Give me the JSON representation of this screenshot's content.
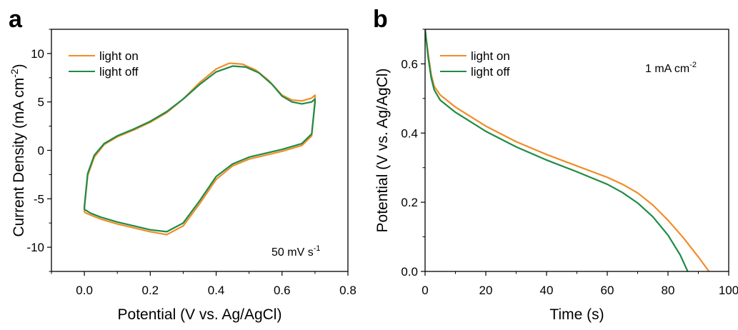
{
  "chart_data": [
    {
      "panel": "a",
      "type": "line",
      "xlabel": "Potential (V vs. Ag/AgCl)",
      "ylabel": "Current Density (mA cm-2)",
      "ylabel_main": "Current Density (mA cm",
      "ylabel_sup": "-2",
      "ylabel_close": ")",
      "xlim": [
        -0.1,
        0.8
      ],
      "ylim": [
        -12.5,
        12.5
      ],
      "xticks": [
        "0.0",
        "0.2",
        "0.4",
        "0.6",
        "0.8"
      ],
      "xtick_values": [
        0.0,
        0.2,
        0.4,
        0.6,
        0.8
      ],
      "yticks": [
        "-10",
        "-5",
        "0",
        "5",
        "10"
      ],
      "ytick_values": [
        -10,
        -5,
        0,
        5,
        10
      ],
      "annotation": "50 mV s-1",
      "annotation_main": "50 mV s",
      "annotation_sup": "-1",
      "legend_position": "top-left",
      "series": [
        {
          "name": "light on",
          "color": "#F28C28",
          "points": [
            [
              0.0,
              -6.4
            ],
            [
              0.0,
              -6.0
            ],
            [
              0.01,
              -2.6
            ],
            [
              0.03,
              -0.7
            ],
            [
              0.06,
              0.6
            ],
            [
              0.1,
              1.4
            ],
            [
              0.15,
              2.1
            ],
            [
              0.2,
              2.9
            ],
            [
              0.25,
              3.9
            ],
            [
              0.3,
              5.3
            ],
            [
              0.35,
              7.0
            ],
            [
              0.4,
              8.4
            ],
            [
              0.44,
              9.0
            ],
            [
              0.48,
              8.9
            ],
            [
              0.52,
              8.3
            ],
            [
              0.56,
              7.2
            ],
            [
              0.6,
              5.7
            ],
            [
              0.63,
              5.2
            ],
            [
              0.66,
              5.1
            ],
            [
              0.69,
              5.4
            ],
            [
              0.7,
              5.7
            ],
            [
              0.7,
              5.2
            ],
            [
              0.69,
              1.5
            ],
            [
              0.66,
              0.5
            ],
            [
              0.6,
              -0.1
            ],
            [
              0.5,
              -0.9
            ],
            [
              0.45,
              -1.6
            ],
            [
              0.4,
              -3.0
            ],
            [
              0.35,
              -5.5
            ],
            [
              0.3,
              -7.8
            ],
            [
              0.25,
              -8.7
            ],
            [
              0.2,
              -8.4
            ],
            [
              0.1,
              -7.6
            ],
            [
              0.05,
              -7.1
            ],
            [
              0.02,
              -6.7
            ],
            [
              0.0,
              -6.4
            ]
          ]
        },
        {
          "name": "light off",
          "color": "#1E8C45",
          "points": [
            [
              0.0,
              -6.1
            ],
            [
              0.0,
              -5.8
            ],
            [
              0.01,
              -2.4
            ],
            [
              0.03,
              -0.5
            ],
            [
              0.06,
              0.7
            ],
            [
              0.1,
              1.5
            ],
            [
              0.15,
              2.2
            ],
            [
              0.2,
              3.0
            ],
            [
              0.25,
              4.0
            ],
            [
              0.3,
              5.3
            ],
            [
              0.35,
              6.8
            ],
            [
              0.4,
              8.1
            ],
            [
              0.45,
              8.7
            ],
            [
              0.49,
              8.6
            ],
            [
              0.53,
              8.0
            ],
            [
              0.57,
              6.8
            ],
            [
              0.6,
              5.6
            ],
            [
              0.63,
              5.0
            ],
            [
              0.66,
              4.8
            ],
            [
              0.69,
              5.0
            ],
            [
              0.7,
              5.3
            ],
            [
              0.7,
              4.9
            ],
            [
              0.69,
              1.7
            ],
            [
              0.66,
              0.7
            ],
            [
              0.6,
              0.1
            ],
            [
              0.5,
              -0.7
            ],
            [
              0.45,
              -1.4
            ],
            [
              0.4,
              -2.7
            ],
            [
              0.35,
              -5.2
            ],
            [
              0.3,
              -7.5
            ],
            [
              0.25,
              -8.4
            ],
            [
              0.2,
              -8.2
            ],
            [
              0.1,
              -7.4
            ],
            [
              0.05,
              -6.9
            ],
            [
              0.02,
              -6.5
            ],
            [
              0.0,
              -6.1
            ]
          ]
        }
      ]
    },
    {
      "panel": "b",
      "type": "line",
      "xlabel": "Time (s)",
      "ylabel": "Potential (V vs. Ag/AgCl)",
      "xlim": [
        0,
        100
      ],
      "ylim": [
        0,
        0.7
      ],
      "xticks": [
        "0",
        "20",
        "40",
        "60",
        "80",
        "100"
      ],
      "xtick_values": [
        0,
        20,
        40,
        60,
        80,
        100
      ],
      "yticks": [
        "0.0",
        "0.2",
        "0.4",
        "0.6"
      ],
      "ytick_values": [
        0.0,
        0.2,
        0.4,
        0.6
      ],
      "annotation": "1 mA cm-2",
      "annotation_main": "1 mA cm",
      "annotation_sup": "-2",
      "legend_position": "top-left",
      "series": [
        {
          "name": "light on",
          "color": "#F28C28",
          "points": [
            [
              0,
              0.7
            ],
            [
              1,
              0.63
            ],
            [
              2,
              0.57
            ],
            [
              3,
              0.535
            ],
            [
              5,
              0.51
            ],
            [
              10,
              0.475
            ],
            [
              20,
              0.42
            ],
            [
              30,
              0.375
            ],
            [
              40,
              0.338
            ],
            [
              50,
              0.305
            ],
            [
              60,
              0.272
            ],
            [
              65,
              0.252
            ],
            [
              70,
              0.227
            ],
            [
              75,
              0.192
            ],
            [
              80,
              0.148
            ],
            [
              85,
              0.098
            ],
            [
              90,
              0.042
            ],
            [
              93.5,
              0.0
            ]
          ]
        },
        {
          "name": "light off",
          "color": "#1E8C45",
          "points": [
            [
              0,
              0.7
            ],
            [
              1,
              0.62
            ],
            [
              2,
              0.56
            ],
            [
              3,
              0.525
            ],
            [
              5,
              0.495
            ],
            [
              10,
              0.46
            ],
            [
              20,
              0.405
            ],
            [
              30,
              0.36
            ],
            [
              40,
              0.322
            ],
            [
              50,
              0.288
            ],
            [
              60,
              0.252
            ],
            [
              65,
              0.228
            ],
            [
              70,
              0.198
            ],
            [
              75,
              0.158
            ],
            [
              80,
              0.105
            ],
            [
              84,
              0.048
            ],
            [
              86.5,
              0.0
            ]
          ]
        }
      ]
    }
  ]
}
